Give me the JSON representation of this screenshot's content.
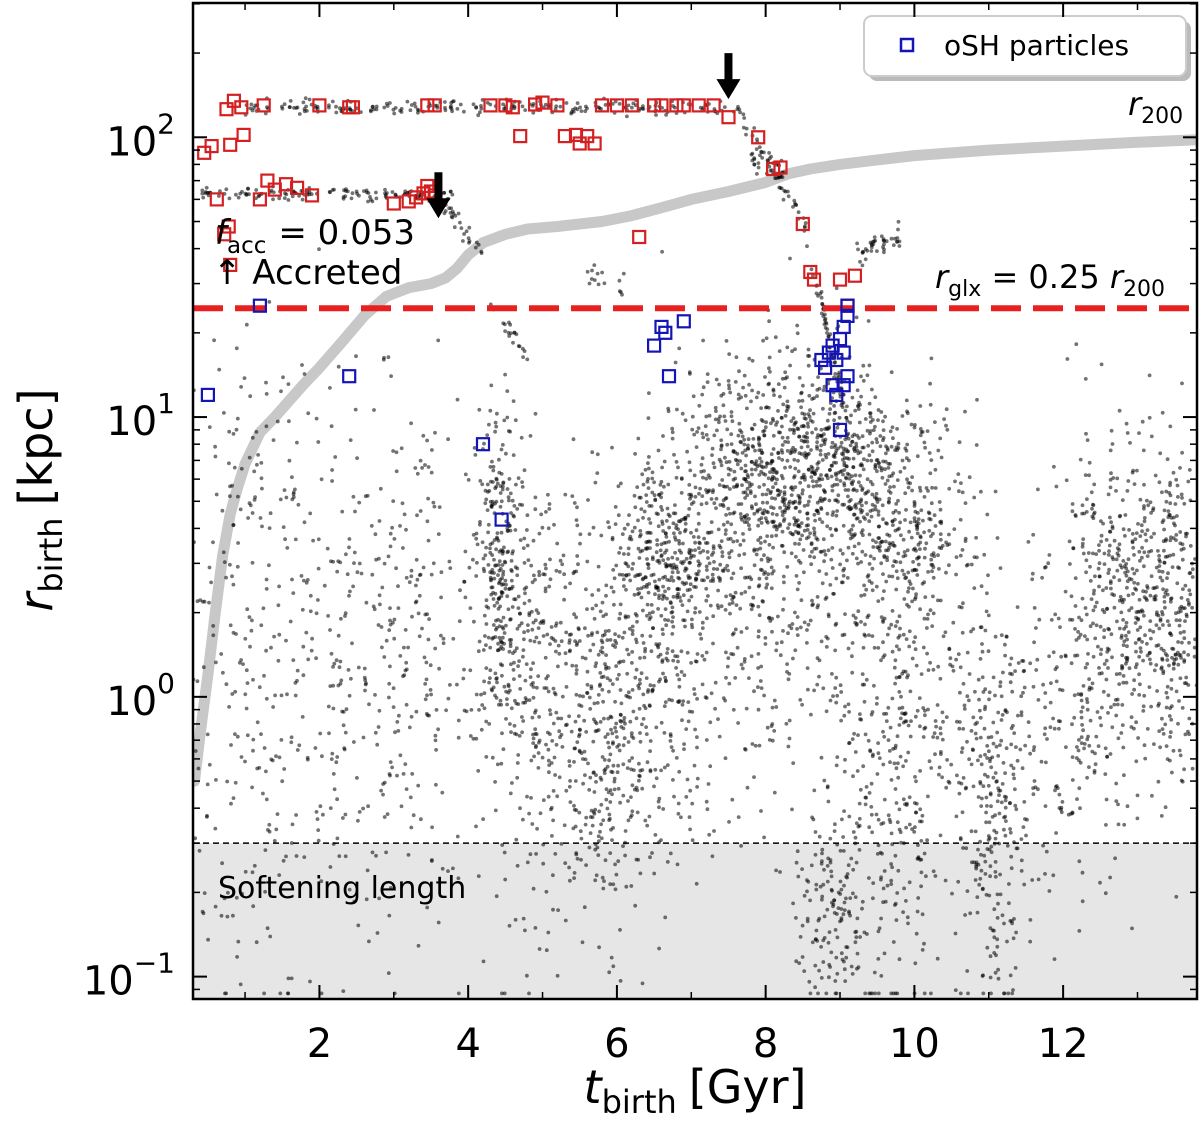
{
  "chart_data": {
    "type": "scatter",
    "xlabel": {
      "main": "t",
      "sub": "birth",
      "unit": "[Gyr]"
    },
    "ylabel": {
      "main": "r",
      "sub": "birth",
      "unit": "[kpc]"
    },
    "xlim": [
      0.3,
      13.8
    ],
    "ylim_log10": [
      -1.08,
      2.48
    ],
    "x_ticks": [
      2,
      4,
      6,
      8,
      10,
      12
    ],
    "x_tick_labels": [
      "2",
      "4",
      "6",
      "8",
      "10",
      "12"
    ],
    "y_ticks_log10": [
      -1,
      0,
      1,
      2
    ],
    "y_tick_labels": [
      {
        "base": "10",
        "exp": "−1"
      },
      {
        "base": "10",
        "exp": "0"
      },
      {
        "base": "10",
        "exp": "1"
      },
      {
        "base": "10",
        "exp": "2"
      }
    ],
    "legend": {
      "position": "top-right",
      "label": "oSH particles",
      "marker": "open-square",
      "color": "#1515b5"
    },
    "colors": {
      "stars": "#000000",
      "osh_accreted": "#d42020",
      "osh_insitu": "#1515b5",
      "r200": "#c8c8c8",
      "rglx": "#e82020",
      "rglx_text": "#8b0000",
      "softening": "#e6e6e6"
    },
    "softening": {
      "r_kpc": 0.3,
      "label": "Softening length"
    },
    "rglx": {
      "r_kpc": 24.5,
      "label_main": "r",
      "label_sub": "glx",
      "label_mid": " = 0.25 ",
      "label_main2": "r",
      "label_sub2": "200"
    },
    "r200_label": {
      "main": "r",
      "sub": "200"
    },
    "f_acc": {
      "symbol": "f",
      "sub": "acc",
      "value": "= 0.053"
    },
    "accreted_label": "↑ Accreted",
    "arrows": [
      {
        "t": 3.6,
        "r_kpc": 75
      },
      {
        "t": 7.5,
        "r_kpc": 200
      }
    ],
    "r200_curve": [
      [
        0.32,
        0.5
      ],
      [
        0.4,
        0.75
      ],
      [
        0.5,
        1.2
      ],
      [
        0.6,
        2.0
      ],
      [
        0.7,
        3.2
      ],
      [
        0.8,
        4.5
      ],
      [
        0.9,
        5.6
      ],
      [
        1.0,
        6.8
      ],
      [
        1.2,
        8.8
      ],
      [
        1.4,
        10
      ],
      [
        1.6,
        11.5
      ],
      [
        1.8,
        13.2
      ],
      [
        2.0,
        15
      ],
      [
        2.3,
        18.5
      ],
      [
        2.6,
        23
      ],
      [
        2.9,
        27
      ],
      [
        3.2,
        29
      ],
      [
        3.5,
        30
      ],
      [
        3.7,
        31.5
      ],
      [
        3.85,
        34
      ],
      [
        4.0,
        38
      ],
      [
        4.2,
        42
      ],
      [
        4.5,
        45
      ],
      [
        4.8,
        47
      ],
      [
        5.2,
        48
      ],
      [
        5.8,
        50
      ],
      [
        6.2,
        52.5
      ],
      [
        6.6,
        56
      ],
      [
        7.0,
        60
      ],
      [
        7.5,
        64
      ],
      [
        8.0,
        69
      ],
      [
        8.3,
        74
      ],
      [
        8.6,
        77
      ],
      [
        9.0,
        80
      ],
      [
        9.5,
        83
      ],
      [
        10.0,
        86
      ],
      [
        11.0,
        90
      ],
      [
        12.0,
        93
      ],
      [
        13.0,
        96
      ],
      [
        13.8,
        98
      ]
    ],
    "star_clusters": [
      {
        "t": 0.9,
        "t_sd": 0.5,
        "lr": -0.1,
        "lr_sd": 0.55,
        "n": 160
      },
      {
        "t": 2.3,
        "t_sd": 0.7,
        "lr": 0.05,
        "lr_sd": 0.5,
        "n": 240
      },
      {
        "t": 1.2,
        "t_sd": 0.4,
        "lr": 0.8,
        "lr_sd": 0.25,
        "n": 60
      },
      {
        "t": 3.3,
        "t_sd": 0.5,
        "lr": 0.2,
        "lr_sd": 0.45,
        "n": 170
      },
      {
        "t": 4.4,
        "t_sd": 0.15,
        "lr": 0.45,
        "lr_sd": 0.3,
        "n": 260
      },
      {
        "t": 5.0,
        "t_sd": 0.4,
        "lr": 0.05,
        "lr_sd": 0.4,
        "n": 320
      },
      {
        "t": 5.9,
        "t_sd": 0.4,
        "lr": -0.15,
        "lr_sd": 0.35,
        "n": 380
      },
      {
        "t": 6.6,
        "t_sd": 0.35,
        "lr": 0.5,
        "lr_sd": 0.2,
        "n": 300
      },
      {
        "t": 7.4,
        "t_sd": 0.4,
        "lr": 0.7,
        "lr_sd": 0.25,
        "n": 320
      },
      {
        "t": 8.2,
        "t_sd": 0.35,
        "lr": 0.85,
        "lr_sd": 0.2,
        "n": 360
      },
      {
        "t": 9.1,
        "t_sd": 0.35,
        "lr": 0.8,
        "lr_sd": 0.2,
        "n": 380
      },
      {
        "t": 9.9,
        "t_sd": 0.4,
        "lr": 0.6,
        "lr_sd": 0.22,
        "n": 280
      },
      {
        "t": 9.6,
        "t_sd": 0.4,
        "lr": -0.4,
        "lr_sd": 0.45,
        "n": 240
      },
      {
        "t": 11.1,
        "t_sd": 0.2,
        "lr": -0.45,
        "lr_sd": 0.3,
        "n": 200
      },
      {
        "t": 10.6,
        "t_sd": 0.6,
        "lr": 0.0,
        "lr_sd": 0.4,
        "n": 240
      },
      {
        "t": 12.8,
        "t_sd": 0.5,
        "lr": 0.35,
        "lr_sd": 0.3,
        "n": 420
      },
      {
        "t": 13.5,
        "t_sd": 0.3,
        "lr": 0.3,
        "lr_sd": 0.3,
        "n": 220
      },
      {
        "t": 12.2,
        "t_sd": 0.4,
        "lr": -0.1,
        "lr_sd": 0.3,
        "n": 150
      },
      {
        "t": 8.5,
        "t_sd": 0.6,
        "lr": 0.2,
        "lr_sd": 0.35,
        "n": 220
      },
      {
        "t": 7.0,
        "t_sd": 0.5,
        "lr": 0.1,
        "lr_sd": 0.35,
        "n": 180
      },
      {
        "t": 8.9,
        "t_sd": 0.25,
        "lr": -0.8,
        "lr_sd": 0.15,
        "n": 120
      }
    ],
    "star_tracks": [
      {
        "t0": 0.4,
        "t1": 3.8,
        "r": 63,
        "n": 130
      },
      {
        "t0": 1.0,
        "t1": 7.6,
        "r": 128,
        "n": 220
      },
      {
        "t0": 3.6,
        "t1": 4.2,
        "r0": 60,
        "r1": 38,
        "n": 30
      },
      {
        "t0": 7.6,
        "t1": 8.5,
        "r0": 125,
        "r1": 50,
        "n": 50
      },
      {
        "t0": 8.5,
        "t1": 9.1,
        "r0": 50,
        "r1": 10,
        "n": 60
      },
      {
        "t0": 9.2,
        "t1": 9.8,
        "r0": 38,
        "r1": 45,
        "n": 40
      },
      {
        "t0": 4.3,
        "t1": 4.8,
        "r0": 25,
        "r1": 17,
        "n": 20
      },
      {
        "t0": 5.6,
        "t1": 6.1,
        "r0": 33,
        "r1": 30,
        "n": 15
      },
      {
        "t0": 7.8,
        "t1": 8.3,
        "r0": 80,
        "r1": 76,
        "n": 25
      }
    ],
    "osh_accreted": [
      [
        0.45,
        88
      ],
      [
        0.55,
        93
      ],
      [
        0.62,
        60
      ],
      [
        0.75,
        126
      ],
      [
        0.85,
        135
      ],
      [
        0.8,
        94
      ],
      [
        0.95,
        128
      ],
      [
        0.98,
        102
      ],
      [
        0.72,
        45
      ],
      [
        0.78,
        48
      ],
      [
        0.8,
        35
      ],
      [
        1.2,
        60
      ],
      [
        1.3,
        70
      ],
      [
        1.4,
        65
      ],
      [
        1.55,
        68
      ],
      [
        1.7,
        66
      ],
      [
        1.9,
        62
      ],
      [
        1.25,
        130
      ],
      [
        2.0,
        130
      ],
      [
        2.4,
        128
      ],
      [
        2.45,
        128
      ],
      [
        3.0,
        58
      ],
      [
        3.2,
        59
      ],
      [
        3.3,
        61
      ],
      [
        3.4,
        63
      ],
      [
        3.45,
        67
      ],
      [
        3.5,
        64
      ],
      [
        3.55,
        62
      ],
      [
        3.45,
        130
      ],
      [
        3.55,
        130
      ],
      [
        4.3,
        130
      ],
      [
        4.5,
        130
      ],
      [
        4.6,
        128
      ],
      [
        4.7,
        101
      ],
      [
        4.9,
        131
      ],
      [
        5.0,
        133
      ],
      [
        5.2,
        130
      ],
      [
        5.3,
        101
      ],
      [
        5.45,
        102
      ],
      [
        5.5,
        95
      ],
      [
        5.6,
        101
      ],
      [
        5.7,
        95
      ],
      [
        5.8,
        130
      ],
      [
        6.0,
        130
      ],
      [
        6.2,
        130
      ],
      [
        6.3,
        44
      ],
      [
        6.5,
        130
      ],
      [
        6.6,
        130
      ],
      [
        6.8,
        130
      ],
      [
        6.9,
        130
      ],
      [
        7.1,
        130
      ],
      [
        7.3,
        130
      ],
      [
        7.5,
        118
      ],
      [
        7.9,
        100
      ],
      [
        8.1,
        77
      ],
      [
        8.2,
        78
      ],
      [
        8.5,
        49
      ],
      [
        8.6,
        33
      ],
      [
        8.65,
        31
      ],
      [
        9.0,
        31
      ],
      [
        9.2,
        32
      ],
      [
        9.1,
        25
      ]
    ],
    "osh_insitu": [
      [
        0.5,
        12
      ],
      [
        1.2,
        25
      ],
      [
        2.4,
        14
      ],
      [
        4.2,
        8
      ],
      [
        4.45,
        4.3
      ],
      [
        6.5,
        18
      ],
      [
        6.6,
        21
      ],
      [
        6.65,
        20
      ],
      [
        6.7,
        14
      ],
      [
        6.9,
        22
      ],
      [
        8.75,
        16
      ],
      [
        8.8,
        15
      ],
      [
        8.85,
        17
      ],
      [
        8.9,
        13
      ],
      [
        8.95,
        12
      ],
      [
        8.9,
        18
      ],
      [
        8.95,
        16
      ],
      [
        9.0,
        19
      ],
      [
        9.05,
        17
      ],
      [
        9.1,
        14
      ],
      [
        9.05,
        13
      ],
      [
        9.1,
        23
      ],
      [
        9.1,
        25
      ],
      [
        9.0,
        9
      ],
      [
        9.05,
        21
      ]
    ]
  }
}
